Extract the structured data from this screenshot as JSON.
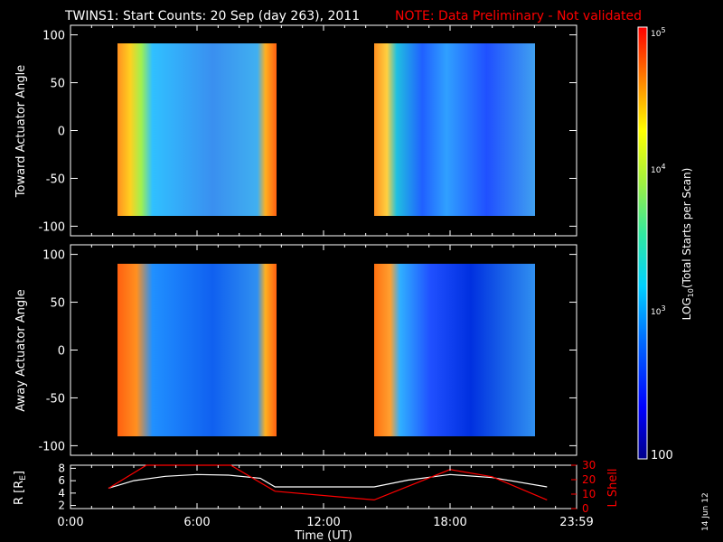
{
  "header": {
    "title": "TWINS1: Start Counts: 20 Sep (day 263), 2011",
    "note": "NOTE: Data Preliminary - Not validated"
  },
  "panels": [
    {
      "ylabel": "Toward Actuator Angle",
      "yticks": [
        "100",
        "50",
        "0",
        "-50",
        "-100"
      ],
      "ylim": [
        -110,
        110
      ]
    },
    {
      "ylabel": "Away Actuator Angle",
      "yticks": [
        "100",
        "50",
        "0",
        "-50",
        "-100"
      ],
      "ylim": [
        -110,
        110
      ]
    }
  ],
  "orbit_panel": {
    "ylabel_left": "R [R",
    "ylabel_left_sub": "E",
    "ylabel_left_end": "]",
    "yticks_left": [
      "8",
      "6",
      "4",
      "2"
    ],
    "ylim_left": [
      1.5,
      8.5
    ],
    "ylabel_right": "L Shell",
    "yticks_right": [
      "30",
      "20",
      "10",
      "0"
    ],
    "ylim_right": [
      0,
      30
    ],
    "right_color": "#ff0000"
  },
  "xaxis": {
    "ticks": [
      "0:00",
      "6:00",
      "12:00",
      "18:00",
      "23:59"
    ],
    "label": "Time (UT)",
    "xlim": [
      0,
      24
    ]
  },
  "colorbar": {
    "label_prefix": "LOG",
    "label_sub": "10",
    "label_suffix": "(Total Starts per Scan)",
    "tick_top_base": "10",
    "tick_top_exp": "5",
    "tick_mid_base": "10",
    "tick_mid_exp": "4",
    "tick_low_base": "10",
    "tick_low_exp": "3",
    "tick_bottom": "100"
  },
  "footer": {
    "date_stamp": "14 Jun 12"
  },
  "colors": {
    "note": "#ff0000",
    "lshell": "#ff0000",
    "radius": "#ffffff"
  },
  "chart_data": [
    {
      "type": "heatmap",
      "panel": "Toward Actuator Angle",
      "x_unit": "hours UT",
      "y_unit": "actuator angle (deg)",
      "data_blocks": [
        {
          "x_range": [
            1.8,
            9.8
          ],
          "y_range": [
            -88,
            90
          ]
        },
        {
          "x_range": [
            14.5,
            22.6
          ],
          "y_range": [
            -88,
            90
          ]
        }
      ],
      "color_scale": "log10 starts per scan, 100 to 1e5"
    },
    {
      "type": "heatmap",
      "panel": "Away Actuator Angle",
      "x_unit": "hours UT",
      "y_unit": "actuator angle (deg)",
      "data_blocks": [
        {
          "x_range": [
            1.8,
            9.8
          ],
          "y_range": [
            -88,
            90
          ]
        },
        {
          "x_range": [
            14.5,
            22.6
          ],
          "y_range": [
            -88,
            90
          ]
        }
      ],
      "color_scale": "log10 starts per scan, 100 to 1e5"
    },
    {
      "type": "line",
      "panel": "orbit",
      "series": [
        {
          "name": "R [RE]",
          "axis": "left",
          "x": [
            1.8,
            3,
            4.5,
            6,
            7.5,
            9,
            9.7,
            12,
            14.4,
            16,
            18,
            20,
            22.6
          ],
          "y": [
            4.8,
            6.0,
            6.7,
            7.0,
            6.9,
            6.4,
            5.0,
            5.0,
            5.0,
            6.1,
            7.0,
            6.5,
            5.0
          ]
        },
        {
          "name": "L Shell",
          "axis": "right",
          "x": [
            1.8,
            3.6,
            7.6,
            9.7,
            14.4,
            18,
            20,
            22.6
          ],
          "y": [
            14,
            30,
            30,
            12,
            6,
            27,
            22,
            6
          ]
        }
      ]
    }
  ]
}
